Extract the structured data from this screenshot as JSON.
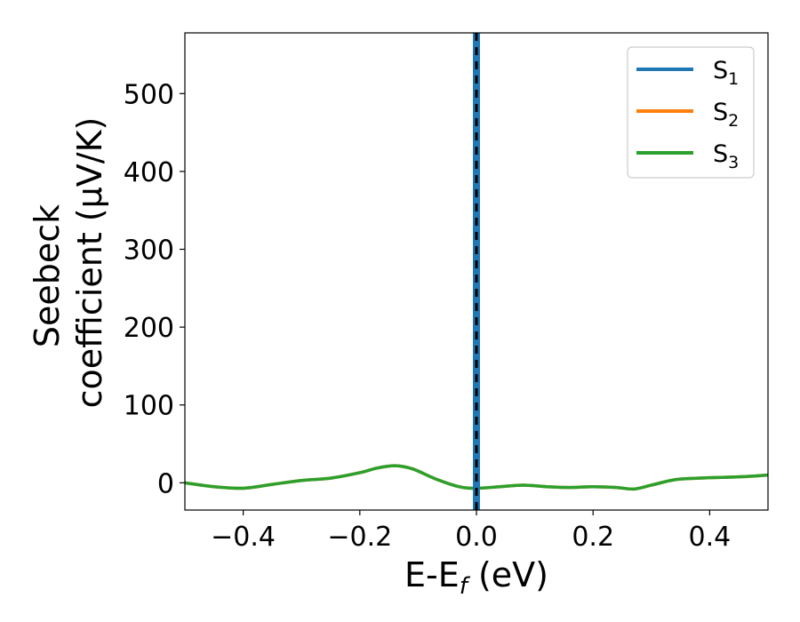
{
  "chart_data": {
    "type": "line",
    "xlabel_main": "E-E",
    "xlabel_sub": "f",
    "xlabel_unit": " (eV)",
    "ylabel_line1": "Seebeck",
    "ylabel_line2": "coefficient  (μV/K)",
    "xlim": [
      -0.5,
      0.5
    ],
    "ylim": [
      -35,
      578
    ],
    "xticks": [
      -0.4,
      -0.2,
      0.0,
      0.2,
      0.4
    ],
    "xtick_labels": [
      "−0.4",
      "−0.2",
      "0.0",
      "0.2",
      "0.4"
    ],
    "yticks": [
      0,
      100,
      200,
      300,
      400,
      500
    ],
    "ytick_labels": [
      "0",
      "100",
      "200",
      "300",
      "400",
      "500"
    ],
    "legend_position": "top-right",
    "fermi_level_x": 0.0,
    "series": [
      {
        "name": "S",
        "sub": "1",
        "color": "#1f77b4",
        "style": "vertical-line-at-fermi-level",
        "x": [
          0.0,
          0.0
        ],
        "y": [
          -35,
          578
        ]
      },
      {
        "name": "S",
        "sub": "2",
        "color": "#ff7f0e",
        "x": [
          -0.5,
          -0.45,
          -0.4,
          -0.35,
          -0.3,
          -0.25,
          -0.2,
          -0.17,
          -0.14,
          -0.11,
          -0.07,
          -0.03,
          0.0,
          0.04,
          0.08,
          0.12,
          0.16,
          0.2,
          0.24,
          0.27,
          0.3,
          0.34,
          0.38,
          0.42,
          0.46,
          0.5
        ],
        "y": [
          0,
          -5,
          -7,
          -2,
          3,
          6,
          13,
          19,
          22,
          18,
          5,
          -5,
          -7,
          -5,
          -3,
          -5,
          -6,
          -5,
          -6,
          -8,
          -3,
          4,
          6,
          7,
          8,
          10
        ]
      },
      {
        "name": "S",
        "sub": "3",
        "color": "#2ca02c",
        "x": [
          -0.5,
          -0.45,
          -0.4,
          -0.35,
          -0.3,
          -0.25,
          -0.2,
          -0.17,
          -0.14,
          -0.11,
          -0.07,
          -0.03,
          0.0,
          0.04,
          0.08,
          0.12,
          0.16,
          0.2,
          0.24,
          0.27,
          0.3,
          0.34,
          0.38,
          0.42,
          0.46,
          0.5
        ],
        "y": [
          0,
          -5,
          -7,
          -2,
          3,
          6,
          13,
          19,
          22,
          18,
          5,
          -5,
          -7,
          -5,
          -3,
          -5,
          -6,
          -5,
          -6,
          -8,
          -3,
          4,
          6,
          7,
          8,
          10
        ]
      }
    ]
  }
}
